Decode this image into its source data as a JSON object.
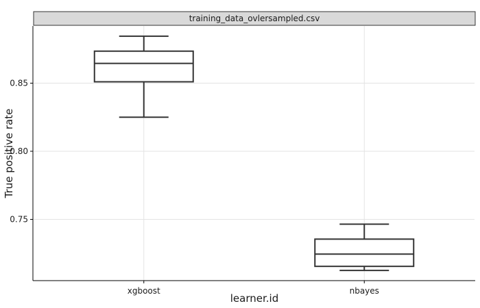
{
  "chart_data": {
    "type": "box",
    "facet_title": "training_data_ovlersampled.csv",
    "xlabel": "learner.id",
    "ylabel": "True positive rate",
    "categories": [
      "xgboost",
      "nbayes"
    ],
    "ylim": [
      0.7125,
      0.8875
    ],
    "yticks": [
      0.75,
      0.8,
      0.85
    ],
    "ytick_labels": [
      "0.75",
      "0.80",
      "0.85"
    ],
    "grid": true,
    "boxes": [
      {
        "category": "xgboost",
        "min": 0.825,
        "q1": 0.851,
        "median": 0.8645,
        "q3": 0.8735,
        "max": 0.8845
      },
      {
        "category": "nbayes",
        "min": 0.7125,
        "q1": 0.7155,
        "median": 0.7245,
        "q3": 0.7355,
        "max": 0.7465
      }
    ],
    "colors": {
      "box_line": "#333333",
      "grid": "#e3e3e3",
      "strip_fill": "#d9d9d9",
      "strip_border": "#333333",
      "axis": "#000000"
    }
  }
}
